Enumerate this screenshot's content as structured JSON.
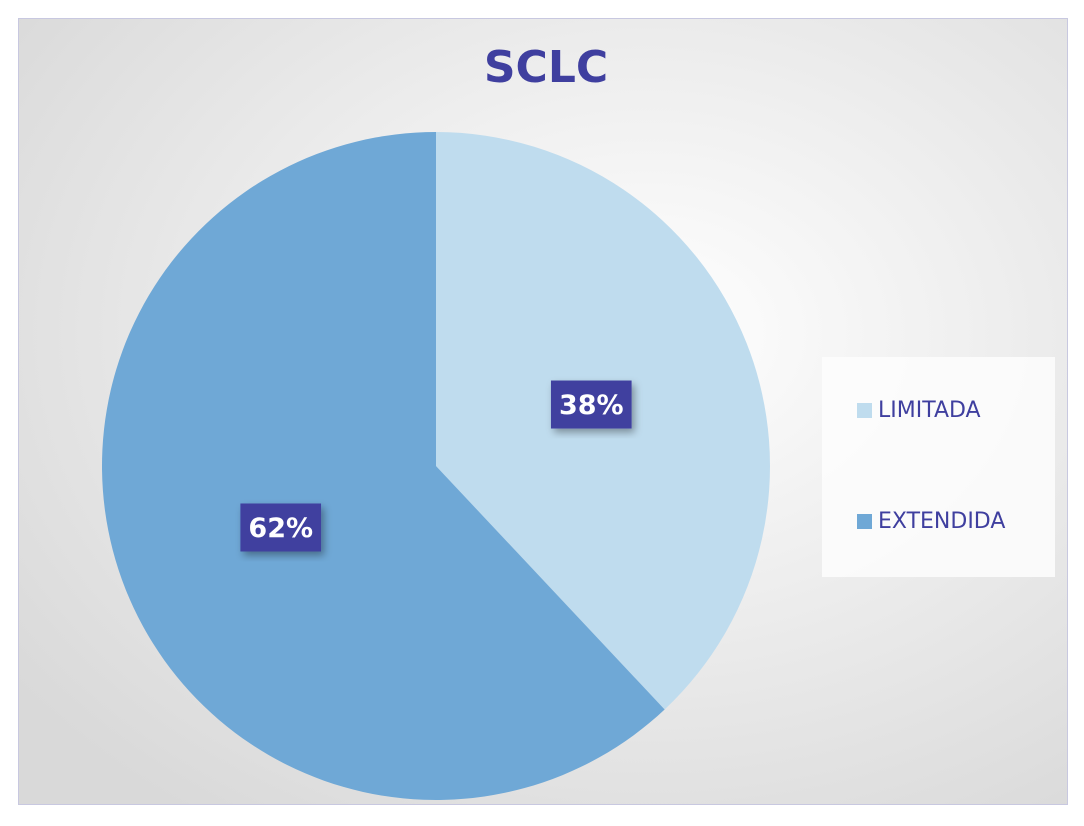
{
  "chart_data": {
    "type": "pie",
    "title": "SCLC",
    "categories": [
      "LIMITADA",
      "EXTENDIDA"
    ],
    "values": [
      38,
      62
    ],
    "value_labels": [
      "38%",
      "62%"
    ],
    "colors": [
      "#bfdcee",
      "#6fa8d6"
    ],
    "legend": "right"
  }
}
